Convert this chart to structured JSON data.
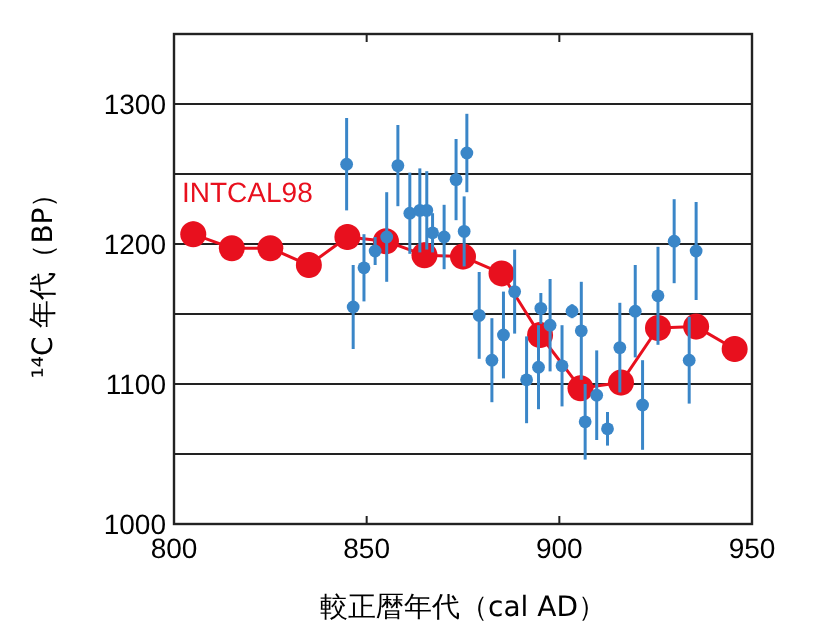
{
  "chart_data": {
    "type": "scatter",
    "xlabel": "較正暦年代（cal AD）",
    "ylabel": "¹⁴C 年代（BP）",
    "xlim": [
      800,
      950
    ],
    "xticks": [
      800,
      850,
      900,
      950
    ],
    "ylim": [
      1000,
      1350
    ],
    "yticks": [
      1000,
      {
        "value": 1050,
        "label": null
      },
      1100,
      {
        "value": 1150,
        "label": null
      },
      1200,
      {
        "value": 1250,
        "label": null
      },
      1300
    ],
    "grid": "y",
    "marker": "circle",
    "series": [
      {
        "color": "#3a86c8",
        "x": [
          844.8,
          846.5,
          849.3,
          852.2,
          855.2,
          858.1,
          861.2,
          863.8,
          865.6,
          867.1,
          870.1,
          873.2,
          875.3,
          876,
          879.2,
          882.5,
          885.5,
          888.4,
          891.5,
          894.6,
          895.2,
          897.6,
          900.7,
          903.3,
          905.7,
          906.7,
          909.7,
          912.5,
          915.7,
          919.7,
          921.6,
          925.6,
          929.8,
          933.7,
          935.5
        ],
        "values": [
          1257,
          1155,
          1183,
          1195,
          1205,
          1256,
          1222,
          1224,
          1224,
          1208,
          1205,
          1246,
          1209,
          1265,
          1149,
          1117,
          1135,
          1166,
          1103,
          1112,
          1154,
          1142,
          1113,
          1152,
          1138,
          1073,
          1092,
          1068,
          1126,
          1152,
          1085,
          1163,
          1202,
          1117,
          1195
        ],
        "errors": [
          33,
          30,
          24,
          10,
          32,
          29,
          29,
          30,
          28,
          14,
          23,
          29,
          25,
          28,
          31,
          30,
          31,
          30,
          31,
          30,
          11,
          33,
          29,
          5,
          35,
          27,
          32,
          12,
          32,
          33,
          32,
          35,
          30,
          31,
          35
        ]
      },
      {
        "type": "line",
        "name": "INTCAL98",
        "color": "#e8101e",
        "x": [
          805,
          815,
          825,
          835,
          845,
          855,
          865,
          875,
          885,
          895,
          905.5,
          916,
          925.6,
          935.5,
          945.5
        ],
        "values": [
          1207,
          1197,
          1197,
          1185,
          1205,
          1202,
          1192,
          1191,
          1179,
          1135,
          1097,
          1101,
          1140,
          1141,
          1125
        ],
        "errors": [
          9,
          8,
          8,
          9,
          9,
          8,
          9,
          9,
          8,
          9,
          9,
          9,
          9,
          9,
          9
        ]
      }
    ]
  }
}
